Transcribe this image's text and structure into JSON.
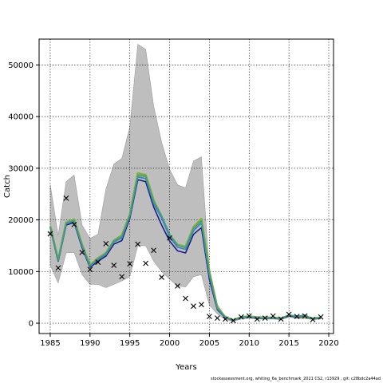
{
  "chart_data": {
    "type": "line",
    "xlabel": "Years",
    "ylabel": "Catch",
    "xlim": [
      1983.6,
      2020.6
    ],
    "ylim": [
      -2000,
      55000
    ],
    "x_ticks": [
      1985,
      1990,
      1995,
      2000,
      2005,
      2010,
      2015,
      2020
    ],
    "y_ticks": [
      0,
      10000,
      20000,
      30000,
      40000,
      50000
    ],
    "grid": true,
    "years": [
      1985,
      1986,
      1987,
      1988,
      1989,
      1990,
      1991,
      1992,
      1993,
      1994,
      1995,
      1996,
      1997,
      1998,
      1999,
      2000,
      2001,
      2002,
      2003,
      2004,
      2005,
      2006,
      2007,
      2008,
      2009,
      2010,
      2011,
      2012,
      2013,
      2014,
      2015,
      2016,
      2017,
      2018,
      2019
    ],
    "band": {
      "upper": [
        26800,
        17000,
        27400,
        28700,
        19000,
        16400,
        17200,
        26000,
        30800,
        31900,
        38000,
        54000,
        53000,
        42000,
        35000,
        29800,
        26800,
        26200,
        31400,
        32200,
        10200,
        3600,
        1300,
        700,
        1200,
        1500,
        1300,
        1300,
        1200,
        1100,
        1700,
        1400,
        1300,
        1100,
        1200
      ],
      "lower": [
        11200,
        7800,
        13600,
        13700,
        9400,
        7500,
        7500,
        6900,
        7500,
        8200,
        9000,
        15000,
        15000,
        12000,
        10000,
        8500,
        7200,
        7000,
        9000,
        9400,
        3500,
        1800,
        700,
        400,
        800,
        1000,
        800,
        800,
        800,
        700,
        1200,
        900,
        900,
        700,
        800
      ]
    },
    "series": [
      {
        "color": "#7fae34",
        "values": [
          18800,
          12200,
          19500,
          20100,
          15200,
          11200,
          12600,
          13600,
          16000,
          17000,
          21000,
          29000,
          28700,
          23800,
          20600,
          17000,
          15200,
          14800,
          18600,
          20200,
          10000,
          3000,
          1200,
          600,
          1200,
          1300,
          1000,
          1000,
          1100,
          900,
          1500,
          1300,
          1200,
          900,
          1100
        ]
      },
      {
        "color": "#1b1f8c",
        "values": [
          18500,
          12000,
          19000,
          19500,
          14600,
          10800,
          12000,
          13000,
          15300,
          16000,
          20300,
          27800,
          27400,
          22500,
          19000,
          15900,
          14000,
          13600,
          17200,
          18500,
          8500,
          2600,
          1100,
          500,
          1100,
          1200,
          900,
          900,
          1000,
          800,
          1400,
          1200,
          1400,
          800,
          1000
        ]
      },
      {
        "color": "#3f7fbf",
        "values": [
          18600,
          12100,
          19200,
          19700,
          14900,
          11000,
          12300,
          13300,
          15700,
          16500,
          20700,
          28300,
          28000,
          23100,
          20300,
          16700,
          14700,
          14300,
          17900,
          19400,
          9200,
          2800,
          1150,
          550,
          1150,
          1250,
          950,
          950,
          1050,
          850,
          1500,
          1300,
          1600,
          850,
          1050
        ]
      },
      {
        "color": "#40a080",
        "values": [
          18700,
          12200,
          19400,
          19900,
          15100,
          11100,
          12500,
          13500,
          15900,
          16800,
          20900,
          28600,
          28400,
          23500,
          20800,
          17200,
          15100,
          14600,
          18300,
          19800,
          9600,
          2900,
          1180,
          580,
          1180,
          1280,
          980,
          980,
          1080,
          880,
          1550,
          1350,
          1450,
          870,
          1070
        ]
      }
    ],
    "observations": {
      "x": [
        1985,
        1986,
        1987,
        1988,
        1989,
        1990,
        1991,
        1992,
        1993,
        1994,
        1995,
        1996,
        1997,
        1998,
        1999,
        2000,
        2001,
        2002,
        2003,
        2004,
        2005,
        2006,
        2007,
        2008,
        2009,
        2010,
        2011,
        2012,
        2013,
        2014,
        2015,
        2016,
        2017,
        2018,
        2019
      ],
      "y": [
        17300,
        10700,
        24200,
        19100,
        13700,
        10400,
        11800,
        15400,
        11200,
        9000,
        11500,
        15300,
        11600,
        14100,
        8900,
        16500,
        7200,
        4800,
        3300,
        3600,
        1300,
        1000,
        800,
        500,
        1200,
        1400,
        800,
        1000,
        1400,
        800,
        1700,
        1300,
        1400,
        700,
        1200
      ]
    }
  },
  "footer": "stockassessment.org,  whiting_6a_benchmark_2021 CS2,  r13929 ,  git: c28bdc2a44ad"
}
